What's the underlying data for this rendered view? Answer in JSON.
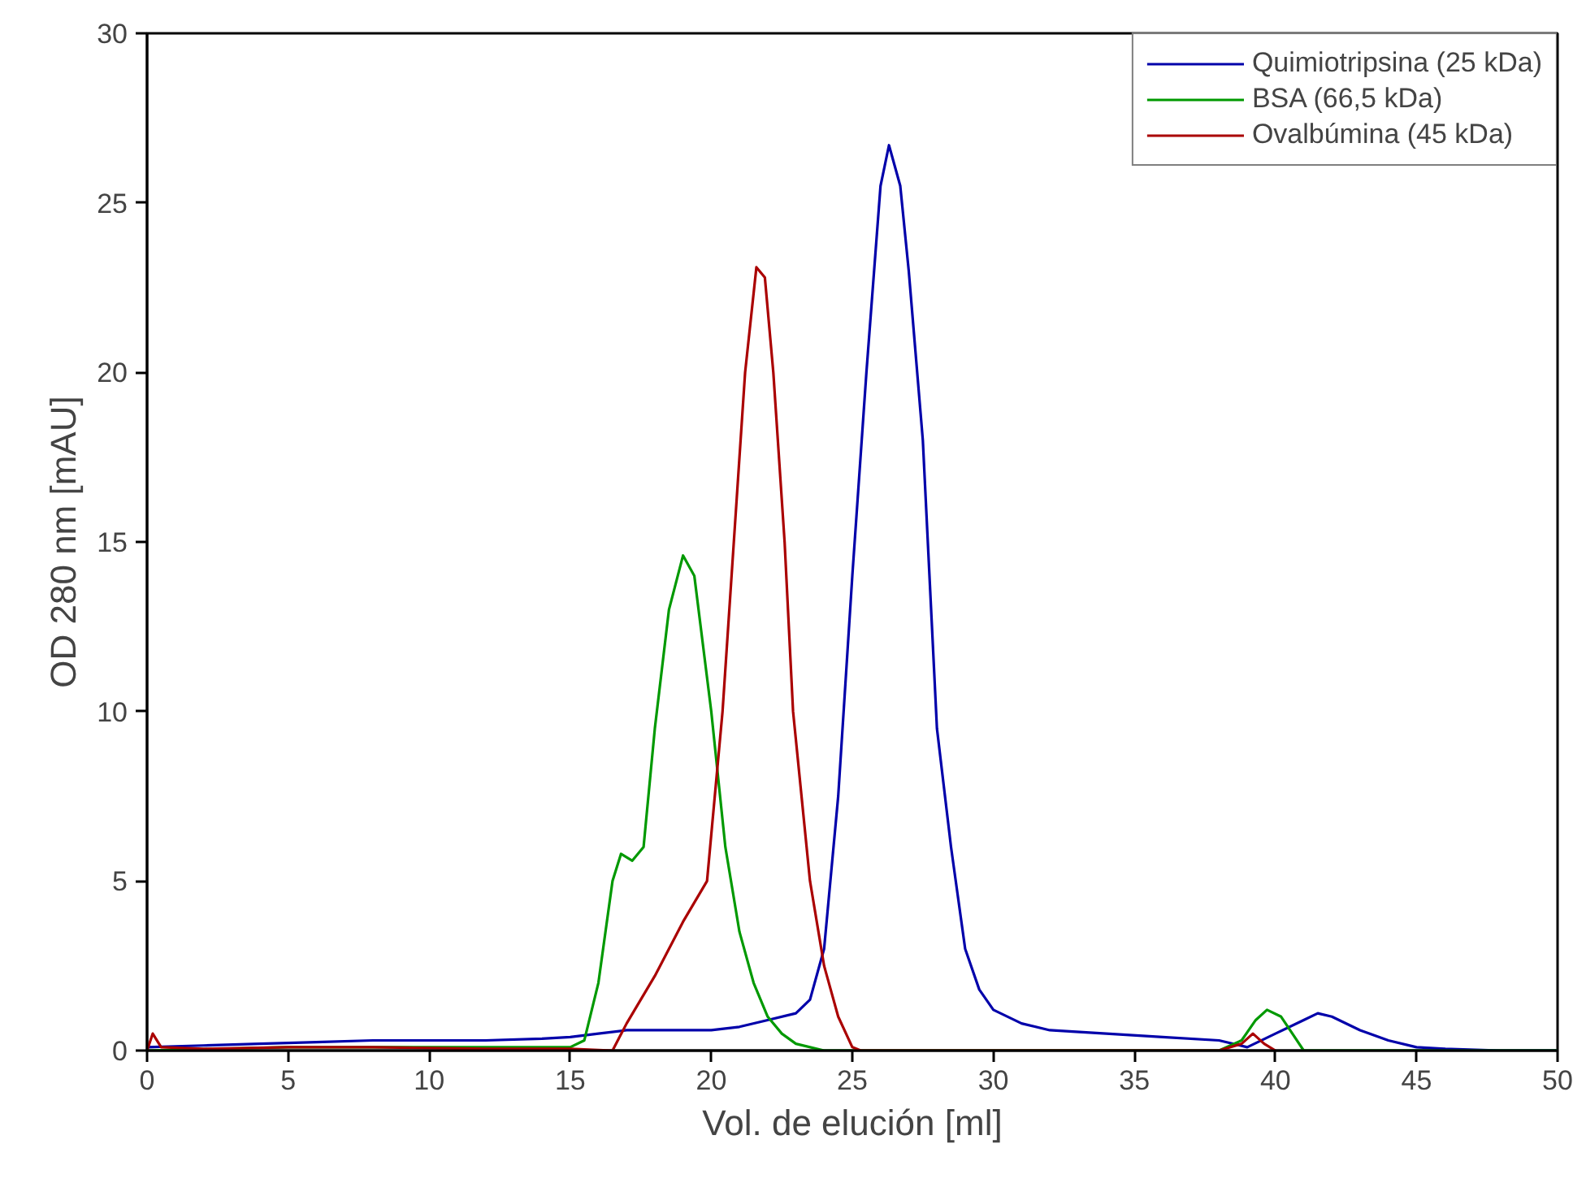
{
  "chart_data": {
    "type": "line",
    "xlabel": "Vol. de elución [ml]",
    "ylabel": "OD 280 nm [mAU]",
    "xlim": [
      0,
      50
    ],
    "ylim": [
      0,
      30
    ],
    "xticks": [
      0,
      5,
      10,
      15,
      20,
      25,
      30,
      35,
      40,
      45,
      50
    ],
    "yticks": [
      0,
      5,
      10,
      15,
      20,
      25,
      30
    ],
    "grid": false,
    "legend": "top right",
    "marker": "none",
    "line_style": "solid",
    "series": [
      {
        "name": "Quimiotripsina (25 kDa)",
        "color": "#0000aa",
        "x": [
          0,
          2,
          4,
          6,
          8,
          10,
          12,
          14,
          15,
          16,
          17,
          18,
          19,
          20,
          21,
          22,
          23,
          23.5,
          24,
          24.5,
          25,
          25.5,
          26,
          26.3,
          26.7,
          27,
          27.5,
          28,
          28.5,
          29,
          29.5,
          30,
          31,
          32,
          34,
          36,
          38,
          39,
          40,
          41,
          41.5,
          42,
          43,
          44,
          45,
          46,
          48,
          50
        ],
        "values": [
          0.1,
          0.15,
          0.2,
          0.25,
          0.3,
          0.3,
          0.3,
          0.35,
          0.4,
          0.5,
          0.6,
          0.6,
          0.6,
          0.6,
          0.7,
          0.9,
          1.1,
          1.5,
          3,
          7.5,
          14,
          20,
          25.5,
          26.7,
          25.5,
          23,
          18,
          9.5,
          6,
          3,
          1.8,
          1.2,
          0.8,
          0.6,
          0.5,
          0.4,
          0.3,
          0.1,
          0.5,
          0.9,
          1.1,
          1.0,
          0.6,
          0.3,
          0.1,
          0.05,
          0,
          0
        ]
      },
      {
        "name": "BSA (66,5 kDa)",
        "color": "#009900",
        "x": [
          0,
          5,
          10,
          15,
          15.5,
          16,
          16.5,
          16.8,
          17.2,
          17.6,
          18,
          18.5,
          19,
          19.4,
          20,
          20.5,
          21,
          21.5,
          22,
          22.5,
          23,
          24,
          30,
          38,
          38.8,
          39.3,
          39.7,
          40.2,
          40.6,
          41,
          45,
          50
        ],
        "values": [
          0,
          0.1,
          0.1,
          0.1,
          0.3,
          2,
          5,
          5.8,
          5.6,
          6,
          9.5,
          13,
          14.6,
          14,
          10,
          6,
          3.5,
          2,
          1,
          0.5,
          0.2,
          0,
          0,
          0,
          0.3,
          0.9,
          1.2,
          1,
          0.5,
          0,
          0,
          0
        ]
      },
      {
        "name": "Ovalbúmina (45 kDa)",
        "color": "#aa0000",
        "x": [
          0,
          0.2,
          0.5,
          2,
          5,
          8,
          12,
          15,
          16.5,
          17,
          18,
          19,
          19.85,
          20.4,
          20.8,
          21.2,
          21.6,
          21.9,
          22.2,
          22.6,
          22.9,
          23.5,
          24,
          24.5,
          25,
          25.3,
          30,
          38,
          38.8,
          39.2,
          39.6,
          40
        ],
        "values": [
          0,
          0.5,
          0.1,
          0.05,
          0.1,
          0.1,
          0.05,
          0.05,
          0,
          0.8,
          2.2,
          3.8,
          5,
          10,
          15,
          20,
          23.1,
          22.8,
          20,
          15,
          10,
          5,
          2.5,
          1,
          0.1,
          0,
          0,
          0,
          0.2,
          0.5,
          0.2,
          0
        ]
      }
    ]
  }
}
